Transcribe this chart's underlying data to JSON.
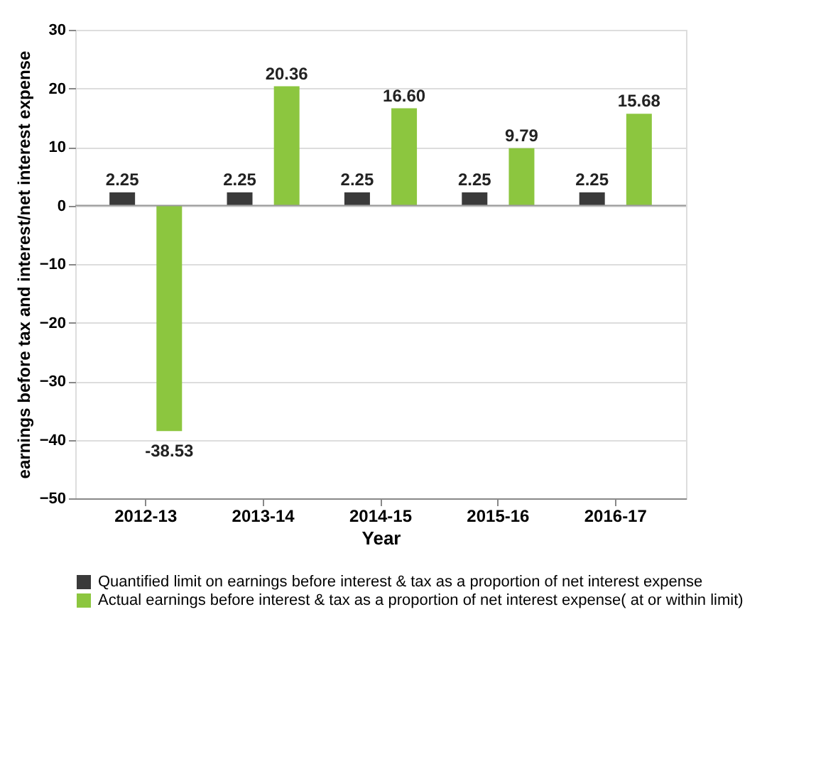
{
  "chart_data": {
    "type": "bar",
    "xlabel": "Year",
    "ylabel": "earnings before tax and interest/net interest expense",
    "categories": [
      "2012-13",
      "2013-14",
      "2014-15",
      "2015-16",
      "2016-17"
    ],
    "series": [
      {
        "name": "Quantified limit on earnings before interest & tax as a proportion of net interest expense",
        "color": "#3a3a3a",
        "values": [
          2.25,
          2.25,
          2.25,
          2.25,
          2.25
        ],
        "value_labels": [
          "2.25",
          "2.25",
          "2.25",
          "2.25",
          "2.25"
        ]
      },
      {
        "name": "Actual earnings before interest &  tax as a proportion of net interest expense( at or within limit)",
        "color": "#8cc63f",
        "values": [
          -38.53,
          20.36,
          16.6,
          9.79,
          15.68
        ],
        "value_labels": [
          "-38.53",
          "20.36",
          "16.60",
          "9.79",
          "15.68"
        ]
      }
    ],
    "ylim": [
      -50,
      30
    ],
    "yticks": [
      -50,
      -40,
      -30,
      -20,
      -10,
      0,
      10,
      20,
      30
    ],
    "grid": "y",
    "legend": "bottom"
  }
}
